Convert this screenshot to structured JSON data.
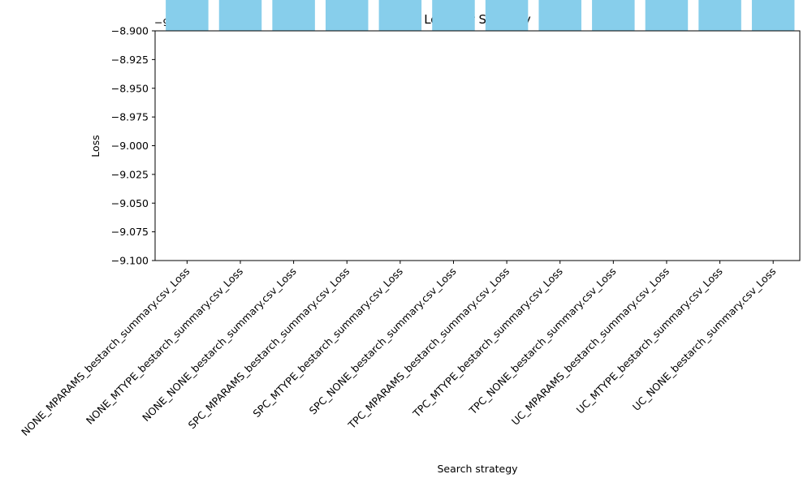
{
  "chart_data": {
    "type": "bar",
    "title": "Loss per Strategy",
    "xlabel": "Search strategy",
    "ylabel": "Loss",
    "offset_text": "−9.999e4",
    "categories": [
      "NONE_MPARAMS_bestarch_summary.csv_Loss",
      "NONE_MTYPE_bestarch_summary.csv_Loss",
      "NONE_NONE_bestarch_summary.csv_Loss",
      "SPC_MPARAMS_bestarch_summary.csv_Loss",
      "SPC_MTYPE_bestarch_summary.csv_Loss",
      "SPC_NONE_bestarch_summary.csv_Loss",
      "TPC_MPARAMS_bestarch_summary.csv_Loss",
      "TPC_MTYPE_bestarch_summary.csv_Loss",
      "TPC_NONE_bestarch_summary.csv_Loss",
      "UC_MPARAMS_bestarch_summary.csv_Loss",
      "UC_MTYPE_bestarch_summary.csv_Loss",
      "UC_NONE_bestarch_summary.csv_Loss"
    ],
    "values": [
      -99999,
      -99999,
      -99999,
      -99999,
      -99999,
      -99999,
      -99999,
      -99999,
      -99999,
      -99999,
      -99999,
      -99999
    ],
    "offset_value": -99990,
    "ylim_relative": [
      -9.1,
      -8.9
    ],
    "yticks_relative": [
      -8.9,
      -8.925,
      -8.95,
      -8.975,
      -9.0,
      -9.025,
      -9.05,
      -9.075,
      -9.1
    ],
    "ytick_labels": [
      "−8.900",
      "−8.925",
      "−8.950",
      "−8.975",
      "−9.000",
      "−9.025",
      "−9.050",
      "−9.075",
      "−9.100"
    ],
    "bar_color": "#87ceeb",
    "grid": false
  }
}
